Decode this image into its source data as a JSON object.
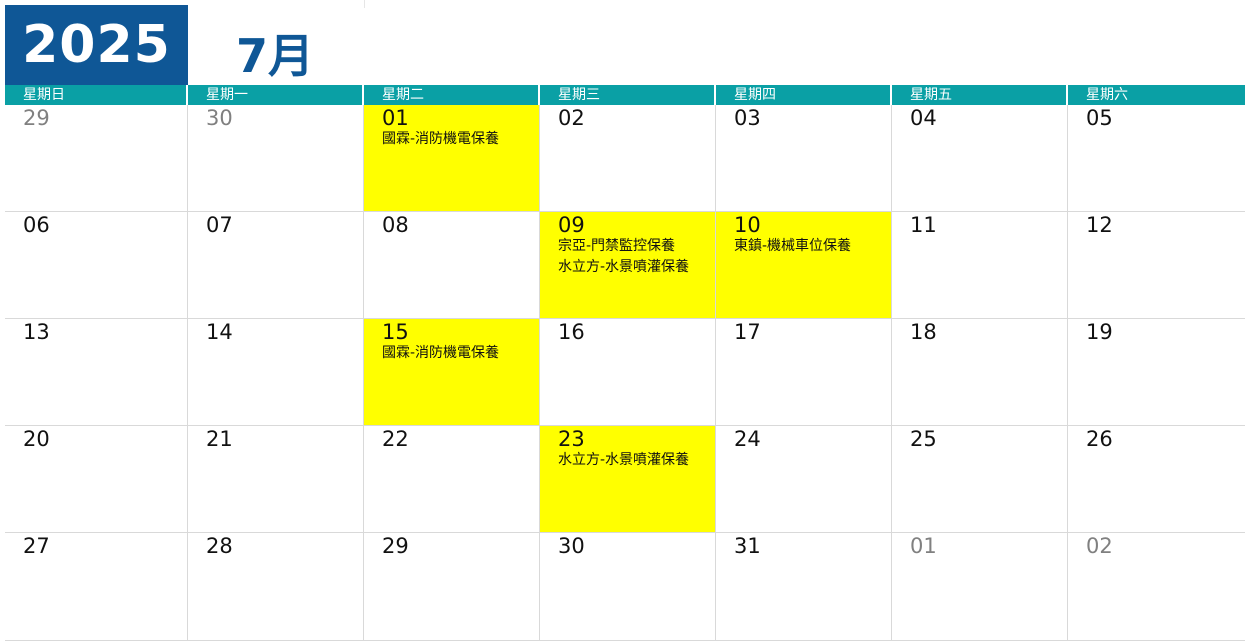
{
  "header": {
    "year": "2025",
    "month": "7月"
  },
  "weekdays": [
    "星期日",
    "星期一",
    "星期二",
    "星期三",
    "星期四",
    "星期五",
    "星期六"
  ],
  "weeks": [
    [
      {
        "day": "29",
        "other": true,
        "events": []
      },
      {
        "day": "30",
        "other": true,
        "events": []
      },
      {
        "day": "01",
        "highlight": true,
        "events": [
          "國霖-消防機電保養"
        ]
      },
      {
        "day": "02",
        "events": []
      },
      {
        "day": "03",
        "events": []
      },
      {
        "day": "04",
        "events": []
      },
      {
        "day": "05",
        "events": []
      }
    ],
    [
      {
        "day": "06",
        "events": []
      },
      {
        "day": "07",
        "events": []
      },
      {
        "day": "08",
        "events": []
      },
      {
        "day": "09",
        "highlight": true,
        "events": [
          "宗亞-門禁監控保養",
          "水立方-水景噴灌保養"
        ]
      },
      {
        "day": "10",
        "highlight": true,
        "events": [
          "東鎮-機械車位保養"
        ]
      },
      {
        "day": "11",
        "events": []
      },
      {
        "day": "12",
        "events": []
      }
    ],
    [
      {
        "day": "13",
        "events": []
      },
      {
        "day": "14",
        "events": []
      },
      {
        "day": "15",
        "highlight": true,
        "events": [
          "國霖-消防機電保養"
        ]
      },
      {
        "day": "16",
        "events": []
      },
      {
        "day": "17",
        "events": []
      },
      {
        "day": "18",
        "events": []
      },
      {
        "day": "19",
        "events": []
      }
    ],
    [
      {
        "day": "20",
        "events": []
      },
      {
        "day": "21",
        "events": []
      },
      {
        "day": "22",
        "events": []
      },
      {
        "day": "23",
        "highlight": true,
        "events": [
          "水立方-水景噴灌保養"
        ]
      },
      {
        "day": "24",
        "events": []
      },
      {
        "day": "25",
        "events": []
      },
      {
        "day": "26",
        "events": []
      }
    ],
    [
      {
        "day": "27",
        "events": []
      },
      {
        "day": "28",
        "events": []
      },
      {
        "day": "29",
        "events": []
      },
      {
        "day": "30",
        "events": []
      },
      {
        "day": "31",
        "events": []
      },
      {
        "day": "01",
        "other": true,
        "events": []
      },
      {
        "day": "02",
        "other": true,
        "events": []
      }
    ]
  ],
  "colors": {
    "header_blue": "#0f5796",
    "weekday_teal": "#0aa0a5",
    "highlight_yellow": "#ffff00",
    "other_month_gray": "#808080"
  }
}
